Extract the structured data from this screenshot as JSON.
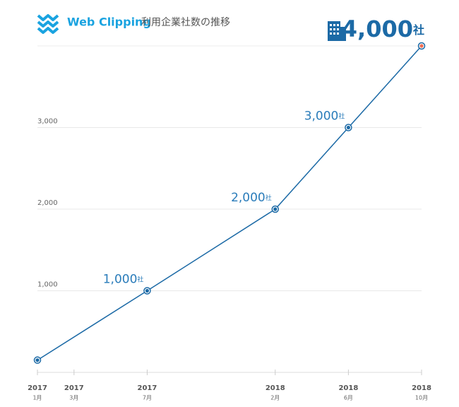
{
  "header": {
    "brand": "Web Clipping",
    "title": "利用企業社数の推移"
  },
  "chart_data": {
    "type": "line",
    "x": [
      "2017-01",
      "2017-07",
      "2018-02",
      "2018-06",
      "2018-10"
    ],
    "series": [
      {
        "color": "#1c6aa6",
        "highlight_color": "#ee6e55",
        "values": [
          150,
          1000,
          2000,
          3000,
          4000
        ],
        "value_labels": [
          null,
          "1,000",
          "2,000",
          "3,000",
          "4,000"
        ],
        "value_label_unit": "社"
      }
    ],
    "ylim": [
      0,
      4000
    ],
    "yticks": [
      {
        "value": 1000,
        "label": "1,000"
      },
      {
        "value": 2000,
        "label": "2,000"
      },
      {
        "value": 3000,
        "label": "3,000"
      }
    ],
    "xlim": [
      "2017-01",
      "2018-10"
    ],
    "xticks": [
      {
        "value": "2017-01",
        "label": [
          "2017",
          "1月"
        ]
      },
      {
        "value": "2017-03",
        "label": [
          "2017",
          "3月"
        ]
      },
      {
        "value": "2017-07",
        "label": [
          "2017",
          "7月"
        ]
      },
      {
        "value": "2018-02",
        "label": [
          "2018",
          "2月"
        ]
      },
      {
        "value": "2018-06",
        "label": [
          "2018",
          "6月"
        ]
      },
      {
        "value": "2018-10",
        "label": [
          "2018",
          "10月"
        ]
      }
    ],
    "grid": true
  }
}
